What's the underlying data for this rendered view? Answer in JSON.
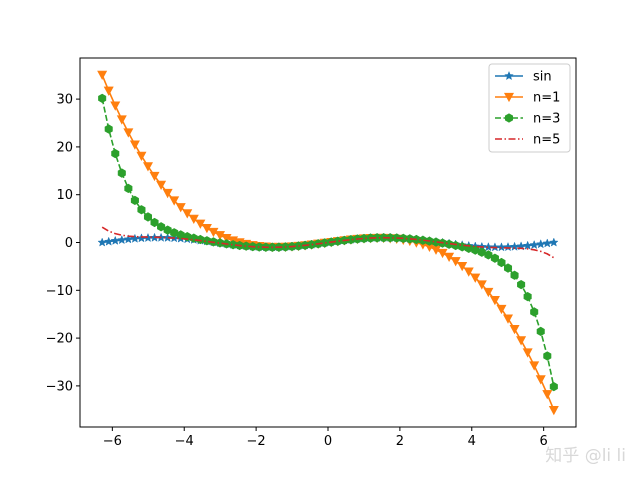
{
  "chart_data": {
    "type": "line",
    "title": "",
    "xlabel": "",
    "ylabel": "",
    "xlim": [
      -6.9,
      6.9
    ],
    "ylim": [
      -38.6,
      38.6
    ],
    "xticks": [
      -6,
      -4,
      -2,
      0,
      2,
      4,
      6
    ],
    "yticks": [
      -30,
      -20,
      -10,
      0,
      10,
      20,
      30
    ],
    "grid": false,
    "legend_position": "top-right",
    "x_range": [
      -6.28318,
      6.28318
    ],
    "num_points": 70,
    "series": [
      {
        "name": "sin",
        "function": "sin(x)",
        "color": "#1f77b4",
        "linestyle": "solid",
        "marker": "star"
      },
      {
        "name": "n=1",
        "function": "x - x^3/6",
        "color": "#ff7f0e",
        "linestyle": "solid",
        "marker": "triangle-down"
      },
      {
        "name": "n=3",
        "function": "x - x^3/6 + x^5/120 - x^7/5040",
        "color": "#2ca02c",
        "linestyle": "dashed",
        "marker": "hexagon"
      },
      {
        "name": "n=5",
        "function": "x - x^3/6 + x^5/120 - x^7/5040 + x^9/362880 - x^11/39916800",
        "color": "#d62728",
        "linestyle": "dashdot",
        "marker": "none"
      }
    ]
  },
  "watermark": "知乎 @li li"
}
